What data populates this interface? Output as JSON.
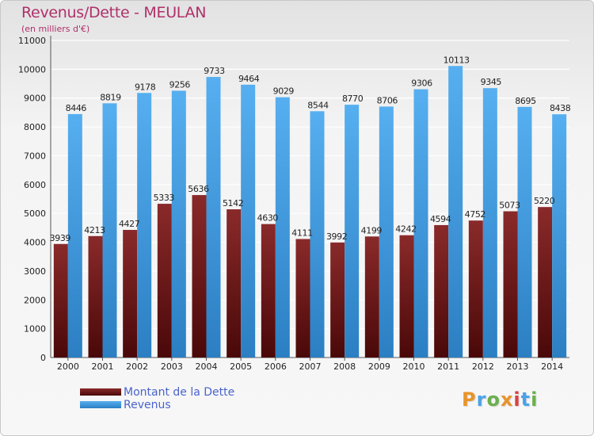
{
  "title": "Revenus/Dette - MEULAN",
  "subtitle": "(en milliers d'€)",
  "colors": {
    "dette": "#6e1a1a",
    "revenus": "#4aa3e8",
    "title": "#b0306a",
    "legend_text": "#4a63cc"
  },
  "legend": [
    {
      "label": "Montant de la Dette",
      "color": "#6e1a1a"
    },
    {
      "label": "Revenus",
      "color": "#4aa3e8"
    }
  ],
  "logo": {
    "text": "Proxiti",
    "colors": [
      "#e8942a",
      "#4aa3e8",
      "#6ab04c",
      "#e8942a",
      "#d94040",
      "#4aa3e8",
      "#6ab04c"
    ]
  },
  "chart_data": {
    "type": "bar",
    "title": "Revenus/Dette - MEULAN",
    "subtitle": "(en milliers d'€)",
    "categories": [
      "2000",
      "2001",
      "2002",
      "2003",
      "2004",
      "2005",
      "2006",
      "2007",
      "2008",
      "2009",
      "2010",
      "2011",
      "2012",
      "2013",
      "2014"
    ],
    "series": [
      {
        "name": "Montant de la Dette",
        "color": "#6e1a1a",
        "values": [
          3939,
          4213,
          4427,
          5333,
          5636,
          5142,
          4630,
          4111,
          3992,
          4199,
          4242,
          4594,
          4752,
          5073,
          5220
        ]
      },
      {
        "name": "Revenus",
        "color": "#4aa3e8",
        "values": [
          8446,
          8819,
          9178,
          9256,
          9733,
          9464,
          9029,
          8544,
          8770,
          8706,
          9306,
          10113,
          9345,
          8695,
          8438
        ]
      }
    ],
    "yticks": [
      0,
      1000,
      2000,
      3000,
      4000,
      5000,
      6000,
      7000,
      8000,
      9000,
      10000,
      11000
    ],
    "ylim": [
      0,
      11000
    ],
    "grid": true,
    "legend_position": "bottom-left"
  }
}
